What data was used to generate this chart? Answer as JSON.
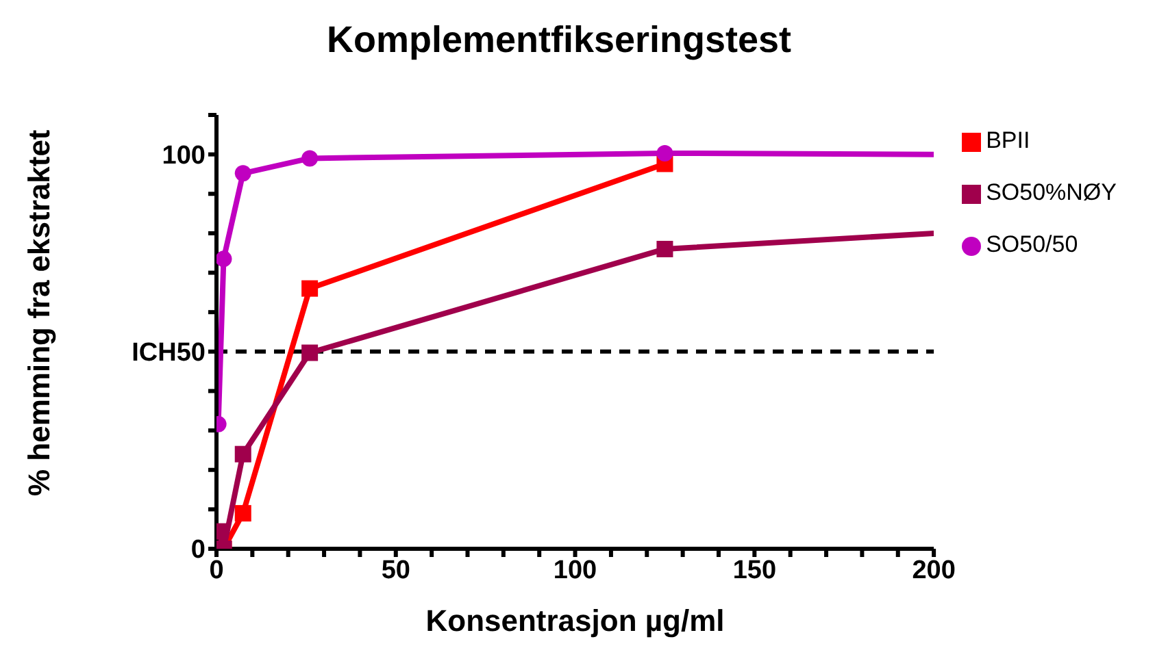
{
  "chart_data": {
    "type": "line",
    "title": "Komplementfikseringstest",
    "xlabel": "Konsentrasjon µg/ml",
    "ylabel": "% hemming fra ekstraktet",
    "series": [
      {
        "name": "BPII",
        "color": "#ff0000",
        "marker": "square",
        "x": [
          0.5,
          2,
          7.4,
          26,
          125
        ],
        "values": [
          0,
          0,
          9,
          66,
          97.6
        ]
      },
      {
        "name": "SO50/50",
        "color": "#c000c0",
        "marker": "circle",
        "x": [
          0.5,
          2,
          7.4,
          26,
          125,
          200
        ],
        "values": [
          31.6,
          73.5,
          95.2,
          99,
          100.3,
          100
        ]
      },
      {
        "name": "SO50%NØY",
        "color": "#a0004c",
        "marker": "square",
        "x": [
          0.5,
          2,
          7.4,
          26,
          125,
          200
        ],
        "values": [
          4.4,
          0,
          24,
          49.7,
          76,
          80
        ]
      }
    ],
    "xlim": [
      0,
      200
    ],
    "xticks": [
      0,
      {
        "value": 10,
        "label": null
      },
      {
        "value": 20,
        "label": null
      },
      {
        "value": 30,
        "label": null
      },
      {
        "value": 40,
        "label": null
      },
      50,
      {
        "value": 60,
        "label": null
      },
      {
        "value": 70,
        "label": null
      },
      {
        "value": 80,
        "label": null
      },
      {
        "value": 90,
        "label": null
      },
      100,
      {
        "value": 110,
        "label": null
      },
      {
        "value": 120,
        "label": null
      },
      {
        "value": 130,
        "label": null
      },
      {
        "value": 140,
        "label": null
      },
      150,
      {
        "value": 160,
        "label": null
      },
      {
        "value": 170,
        "label": null
      },
      {
        "value": 180,
        "label": null
      },
      {
        "value": 190,
        "label": null
      },
      200
    ],
    "ylim": [
      0,
      110
    ],
    "yticks": [
      0,
      {
        "value": 10,
        "label": null
      },
      {
        "value": 20,
        "label": null
      },
      {
        "value": 30,
        "label": null
      },
      {
        "value": 40,
        "label": null
      },
      {
        "value": 50,
        "label": "ICH50"
      },
      {
        "value": 60,
        "label": null
      },
      {
        "value": 70,
        "label": null
      },
      {
        "value": 80,
        "label": null
      },
      {
        "value": 90,
        "label": null
      },
      100,
      {
        "value": 110,
        "label": null
      }
    ],
    "ref_lines": [
      {
        "axis": "y",
        "value": 50,
        "color": "#000000",
        "line_style": "dashed"
      }
    ],
    "legend": "top right",
    "grid": false,
    "line_style": "solid"
  }
}
